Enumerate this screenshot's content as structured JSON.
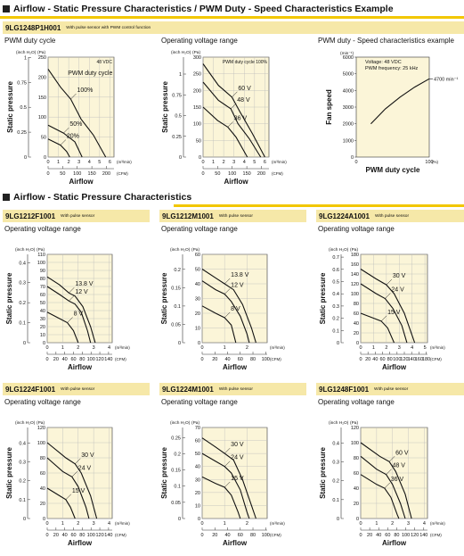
{
  "sections": {
    "s1": "Airflow - Static Pressure Characteristics / PWM Duty - Speed Characteristics Example",
    "s2": "Airflow - Static Pressure Characteristics"
  },
  "models": {
    "m1": {
      "name": "9LG1248P1H001",
      "note": "With pulse sensor with PWM control function"
    },
    "m2": {
      "name": "9LG1212F1001",
      "note": "With pulse sensor"
    },
    "m3": {
      "name": "9LG1212M1001",
      "note": "With pulse sensor"
    },
    "m4": {
      "name": "9LG1224A1001",
      "note": "With pulse sensor"
    },
    "m5": {
      "name": "9LG1224F1001",
      "note": "With pulse sensor"
    },
    "m6": {
      "name": "9LG1224M1001",
      "note": "With pulse sensor"
    },
    "m7": {
      "name": "9LG1248F1001",
      "note": "With pulse sensor"
    }
  },
  "subtitles": {
    "pwm_duty_cycle": "PWM duty cycle",
    "operating_voltage_range": "Operating voltage range",
    "pwm_speed": "PWM duty - Speed characteristics example"
  },
  "chart_data": [
    {
      "type": "line",
      "model": "9LG1248P1H001",
      "xlabel": "Airflow",
      "ylabel": "Static pressure",
      "unit_x_top": "(m³/min)",
      "unit_x_bottom": "(CFM)",
      "unit_y_left": "(inch H₂O)",
      "unit_y_right": "(Pa)",
      "x_ticks_m3": [
        0,
        1,
        2,
        3,
        4,
        5,
        6
      ],
      "x_ticks_cfm": [
        0,
        50,
        100,
        150,
        200
      ],
      "y_ticks_pa": [
        0,
        50,
        100,
        150,
        200,
        250
      ],
      "y_ticks_inch": [
        0,
        0.25,
        0.5,
        0.75,
        1.0
      ],
      "xlim": [
        0,
        6.4
      ],
      "ylim": [
        0,
        250
      ],
      "legend_title": "PWM duty cycle",
      "note": "48 VDC",
      "series": [
        {
          "name": "100%",
          "points": [
            [
              0,
              220
            ],
            [
              1.2,
              175
            ],
            [
              2.2,
              145
            ],
            [
              3.2,
              95
            ],
            [
              4.4,
              55
            ],
            [
              5.6,
              0
            ]
          ]
        },
        {
          "name": "50%",
          "points": [
            [
              0,
              80
            ],
            [
              1.5,
              60
            ],
            [
              2.6,
              38
            ],
            [
              3.3,
              0
            ]
          ]
        },
        {
          "name": "20%",
          "points": [
            [
              0,
              45
            ],
            [
              1.2,
              30
            ],
            [
              1.8,
              14
            ],
            [
              2.1,
              0
            ]
          ]
        }
      ]
    },
    {
      "type": "line",
      "model": "9LG1248P1H001",
      "xlabel": "Airflow",
      "ylabel": "Static pressure",
      "unit_x_top": "(m³/min)",
      "unit_x_bottom": "(CFM)",
      "unit_y_left": "(inch H₂O)",
      "unit_y_right": "(Pa)",
      "x_ticks_m3": [
        0,
        1,
        2,
        3,
        4,
        5,
        6
      ],
      "x_ticks_cfm": [
        0,
        50,
        100,
        150,
        200
      ],
      "y_ticks_pa": [
        0,
        50,
        100,
        150,
        200,
        250,
        300
      ],
      "y_ticks_inch": [
        0,
        0.25,
        0.5,
        0.75,
        1.0,
        1.25
      ],
      "xlim": [
        0,
        6.4
      ],
      "ylim": [
        0,
        300
      ],
      "note": "PWM duty cycle 100%",
      "series": [
        {
          "name": "60 V",
          "points": [
            [
              0,
              280
            ],
            [
              1.5,
              215
            ],
            [
              2.8,
              180
            ],
            [
              3.6,
              135
            ],
            [
              4.8,
              70
            ],
            [
              6,
              0
            ]
          ]
        },
        {
          "name": "48 V",
          "points": [
            [
              0,
              225
            ],
            [
              1.5,
              170
            ],
            [
              2.7,
              145
            ],
            [
              3.4,
              100
            ],
            [
              4.5,
              55
            ],
            [
              5.6,
              0
            ]
          ]
        },
        {
          "name": "36 V",
          "points": [
            [
              0,
              150
            ],
            [
              1.4,
              110
            ],
            [
              2.4,
              90
            ],
            [
              3.2,
              60
            ],
            [
              4.3,
              0
            ]
          ]
        }
      ]
    },
    {
      "type": "line",
      "model": "9LG1248P1H001",
      "xlabel": "PWM duty cycle",
      "ylabel": "Fan speed",
      "unit_x": "(%)",
      "unit_y": "(min⁻¹)",
      "x_ticks": [
        0,
        100
      ],
      "y_ticks": [
        0,
        1000,
        2000,
        3000,
        4000,
        5000,
        6000
      ],
      "xlim": [
        0,
        100
      ],
      "ylim": [
        0,
        6000
      ],
      "note_lines": [
        "Voltage: 48 VDC",
        "PWM frequency: 25 kHz"
      ],
      "annotation": "4700 min⁻¹",
      "series": [
        {
          "name": "",
          "points": [
            [
              20,
              2000
            ],
            [
              40,
              2900
            ],
            [
              60,
              3600
            ],
            [
              80,
              4200
            ],
            [
              100,
              4700
            ]
          ]
        }
      ]
    },
    {
      "type": "line",
      "model": "9LG1212F1001",
      "xlabel": "Airflow",
      "ylabel": "Static pressure",
      "unit_x_top": "(m³/min)",
      "unit_x_bottom": "(CFM)",
      "unit_y_left": "(inch H₂O)",
      "unit_y_right": "(Pa)",
      "x_ticks_m3": [
        0,
        1,
        2,
        3,
        4
      ],
      "x_ticks_cfm": [
        0,
        20,
        40,
        60,
        80,
        100,
        120,
        140
      ],
      "y_ticks_pa": [
        0,
        10,
        20,
        30,
        40,
        50,
        60,
        70,
        80,
        90,
        100,
        110
      ],
      "y_ticks_inch": [
        0,
        0.1,
        0.2,
        0.3,
        0.4
      ],
      "xlim": [
        0,
        4.2
      ],
      "ylim": [
        0,
        110
      ],
      "series": [
        {
          "name": "13.8 V",
          "points": [
            [
              0,
              82
            ],
            [
              0.8,
              72
            ],
            [
              1.4,
              62
            ],
            [
              1.8,
              58
            ],
            [
              2.3,
              45
            ],
            [
              2.8,
              20
            ],
            [
              3.1,
              0
            ]
          ]
        },
        {
          "name": "12 V",
          "points": [
            [
              0,
              70
            ],
            [
              0.8,
              60
            ],
            [
              1.4,
              52
            ],
            [
              1.8,
              48
            ],
            [
              2.2,
              38
            ],
            [
              2.6,
              15
            ],
            [
              2.8,
              0
            ]
          ]
        },
        {
          "name": "8 V",
          "points": [
            [
              0,
              38
            ],
            [
              0.8,
              30
            ],
            [
              1.3,
              25
            ],
            [
              1.7,
              15
            ],
            [
              2.0,
              0
            ]
          ]
        }
      ]
    },
    {
      "type": "line",
      "model": "9LG1212M1001",
      "xlabel": "Airflow",
      "ylabel": "Static pressure",
      "unit_x_top": "(m³/min)",
      "unit_x_bottom": "(CFM)",
      "unit_y_left": "(inch H₂O)",
      "unit_y_right": "(Pa)",
      "x_ticks_m3": [
        0,
        1,
        2
      ],
      "x_ticks_cfm": [
        0,
        20,
        40,
        60,
        80,
        100
      ],
      "y_ticks_pa": [
        0,
        10,
        20,
        30,
        40,
        50,
        60
      ],
      "y_ticks_inch": [
        0,
        0.05,
        0.1,
        0.15,
        0.2,
        0.25
      ],
      "xlim": [
        0,
        2.9
      ],
      "ylim": [
        0,
        60
      ],
      "series": [
        {
          "name": "13.8 V",
          "points": [
            [
              0,
              50
            ],
            [
              0.6,
              44
            ],
            [
              1.0,
              40
            ],
            [
              1.4,
              36
            ],
            [
              1.8,
              26
            ],
            [
              2.2,
              10
            ],
            [
              2.4,
              0
            ]
          ]
        },
        {
          "name": "12 V",
          "points": [
            [
              0,
              42
            ],
            [
              0.6,
              36
            ],
            [
              1.0,
              33
            ],
            [
              1.3,
              28
            ],
            [
              1.7,
              18
            ],
            [
              2.0,
              6
            ],
            [
              2.1,
              0
            ]
          ]
        },
        {
          "name": "8 V",
          "points": [
            [
              0,
              25
            ],
            [
              0.6,
              20
            ],
            [
              1.0,
              17
            ],
            [
              1.3,
              12
            ],
            [
              1.5,
              0
            ]
          ]
        }
      ]
    },
    {
      "type": "line",
      "model": "9LG1224A1001",
      "xlabel": "Airflow",
      "ylabel": "Static pressure",
      "unit_x_top": "(m³/min)",
      "unit_x_bottom": "(CFM)",
      "unit_y_left": "(inch H₂O)",
      "unit_y_right": "(Pa)",
      "x_ticks_m3": [
        0,
        1,
        2,
        3,
        4,
        5
      ],
      "x_ticks_cfm": [
        0,
        20,
        40,
        60,
        80,
        100,
        120,
        140,
        160,
        180
      ],
      "y_ticks_pa": [
        0,
        20,
        40,
        60,
        80,
        100,
        120,
        140,
        160,
        180
      ],
      "y_ticks_inch": [
        0,
        0.1,
        0.2,
        0.3,
        0.4,
        0.5,
        0.6,
        0.7
      ],
      "xlim": [
        0,
        5.2
      ],
      "ylim": [
        0,
        180
      ],
      "series": [
        {
          "name": "30 V",
          "points": [
            [
              0,
              150
            ],
            [
              1.2,
              130
            ],
            [
              2.0,
              118
            ],
            [
              2.6,
              100
            ],
            [
              3.4,
              60
            ],
            [
              4.2,
              0
            ]
          ]
        },
        {
          "name": "24 V",
          "points": [
            [
              0,
              120
            ],
            [
              1.2,
              100
            ],
            [
              1.9,
              90
            ],
            [
              2.5,
              70
            ],
            [
              3.2,
              35
            ],
            [
              3.6,
              0
            ]
          ]
        },
        {
          "name": "15 V",
          "points": [
            [
              0,
              60
            ],
            [
              1.0,
              50
            ],
            [
              1.6,
              44
            ],
            [
              2.1,
              30
            ],
            [
              2.6,
              0
            ]
          ]
        }
      ]
    },
    {
      "type": "line",
      "model": "9LG1224F1001",
      "xlabel": "Airflow",
      "ylabel": "Static pressure",
      "unit_x_top": "(m³/min)",
      "unit_x_bottom": "(CFM)",
      "unit_y_left": "(inch H₂O)",
      "unit_y_right": "(Pa)",
      "x_ticks_m3": [
        0,
        1,
        2,
        3,
        4
      ],
      "x_ticks_cfm": [
        0,
        20,
        40,
        60,
        80,
        100,
        120,
        140
      ],
      "y_ticks_pa": [
        0,
        20,
        40,
        60,
        80,
        100,
        120
      ],
      "y_ticks_inch": [
        0,
        0.1,
        0.2,
        0.3,
        0.4,
        0.5
      ],
      "xlim": [
        0,
        4.2
      ],
      "ylim": [
        0,
        120
      ],
      "series": [
        {
          "name": "30 V",
          "points": [
            [
              0,
              100
            ],
            [
              1.2,
              80
            ],
            [
              1.8,
              72
            ],
            [
              2.2,
              60
            ],
            [
              2.8,
              30
            ],
            [
              3.2,
              0
            ]
          ]
        },
        {
          "name": "24 V",
          "points": [
            [
              0,
              80
            ],
            [
              1.0,
              62
            ],
            [
              1.6,
              55
            ],
            [
              2.0,
              42
            ],
            [
              2.5,
              15
            ],
            [
              2.7,
              0
            ]
          ]
        },
        {
          "name": "15 V",
          "points": [
            [
              0,
              40
            ],
            [
              0.8,
              30
            ],
            [
              1.2,
              25
            ],
            [
              1.5,
              15
            ],
            [
              1.8,
              0
            ]
          ]
        }
      ]
    },
    {
      "type": "line",
      "model": "9LG1224M1001",
      "xlabel": "Airflow",
      "ylabel": "Static pressure",
      "unit_x_top": "(m³/min)",
      "unit_x_bottom": "(CFM)",
      "unit_y_left": "(inch H₂O)",
      "unit_y_right": "(Pa)",
      "x_ticks_m3": [
        0,
        1,
        2
      ],
      "x_ticks_cfm": [
        0,
        20,
        40,
        60,
        80,
        100
      ],
      "y_ticks_pa": [
        0,
        10,
        20,
        30,
        40,
        50,
        60,
        70
      ],
      "y_ticks_inch": [
        0,
        0.05,
        0.1,
        0.15,
        0.2,
        0.25
      ],
      "xlim": [
        0,
        2.9
      ],
      "ylim": [
        0,
        70
      ],
      "series": [
        {
          "name": "30 V",
          "points": [
            [
              0,
              62
            ],
            [
              0.6,
              55
            ],
            [
              1.0,
              50
            ],
            [
              1.4,
              45
            ],
            [
              1.8,
              30
            ],
            [
              2.2,
              10
            ],
            [
              2.4,
              0
            ]
          ]
        },
        {
          "name": "24 V",
          "points": [
            [
              0,
              50
            ],
            [
              0.6,
              44
            ],
            [
              1.0,
              40
            ],
            [
              1.3,
              35
            ],
            [
              1.7,
              22
            ],
            [
              2.0,
              5
            ],
            [
              2.1,
              0
            ]
          ]
        },
        {
          "name": "15 V",
          "points": [
            [
              0,
              32
            ],
            [
              0.6,
              27
            ],
            [
              1.0,
              24
            ],
            [
              1.3,
              18
            ],
            [
              1.6,
              5
            ],
            [
              1.7,
              0
            ]
          ]
        }
      ]
    },
    {
      "type": "line",
      "model": "9LG1248F1001",
      "xlabel": "Airflow",
      "ylabel": "Static pressure",
      "unit_x_top": "(m³/min)",
      "unit_x_bottom": "(CFM)",
      "unit_y_left": "(inch H₂O)",
      "unit_y_right": "(Pa)",
      "x_ticks_m3": [
        0,
        1,
        2,
        3,
        4
      ],
      "x_ticks_cfm": [
        0,
        20,
        40,
        60,
        80,
        100,
        120,
        140
      ],
      "y_ticks_pa": [
        0,
        20,
        40,
        60,
        80,
        100,
        120
      ],
      "y_ticks_inch": [
        0,
        0.1,
        0.2,
        0.3,
        0.4,
        0.5
      ],
      "xlim": [
        0,
        4.2
      ],
      "ylim": [
        0,
        120
      ],
      "series": [
        {
          "name": "60 V",
          "points": [
            [
              0,
              100
            ],
            [
              1.2,
              82
            ],
            [
              1.8,
              75
            ],
            [
              2.2,
              62
            ],
            [
              2.8,
              32
            ],
            [
              3.2,
              0
            ]
          ]
        },
        {
          "name": "48 V",
          "points": [
            [
              0,
              82
            ],
            [
              1.0,
              65
            ],
            [
              1.6,
              58
            ],
            [
              2.0,
              45
            ],
            [
              2.5,
              20
            ],
            [
              2.8,
              0
            ]
          ]
        },
        {
          "name": "36 V",
          "points": [
            [
              0,
              58
            ],
            [
              1.0,
              45
            ],
            [
              1.5,
              40
            ],
            [
              1.9,
              28
            ],
            [
              2.3,
              5
            ],
            [
              2.4,
              0
            ]
          ]
        }
      ]
    }
  ]
}
